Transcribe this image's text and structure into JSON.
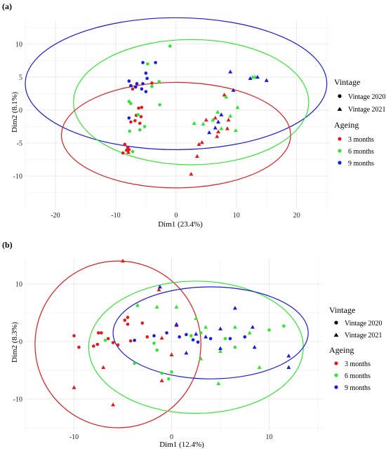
{
  "legend": {
    "vintage_title": "Vintage",
    "vintage_items": [
      {
        "label": "Vintage 2020",
        "shape": "circle"
      },
      {
        "label": "Vintage 2021",
        "shape": "triangle"
      }
    ],
    "ageing_title": "Ageing",
    "ageing_items": [
      {
        "label": "3 months",
        "color": "#e31a1c"
      },
      {
        "label": "6 months",
        "color": "#2ee82e"
      },
      {
        "label": "9 months",
        "color": "#1a1ae0"
      }
    ]
  },
  "chart_data": [
    {
      "panel": "(a)",
      "type": "scatter",
      "xlabel": "Dim1 (23.4%)",
      "ylabel": "Dim2 (8.1%)",
      "xlim": [
        -25,
        25.5
      ],
      "ylim": [
        -15,
        13.5
      ],
      "xticks": [
        -20,
        -10,
        0,
        10,
        20
      ],
      "yticks": [
        -10,
        -5,
        0,
        5,
        10
      ],
      "grid": true,
      "legend_position": "right",
      "ellipses": [
        {
          "group": "9 months",
          "cx": 0,
          "cy": 4,
          "rx": 25,
          "ry": 10,
          "color": "#1a1ae0"
        },
        {
          "group": "6 months",
          "cx": 2.5,
          "cy": 1.2,
          "rx": 19.5,
          "ry": 9.5,
          "color": "#2ee82e"
        },
        {
          "group": "3 months",
          "cx": 0,
          "cy": -3.8,
          "rx": 19,
          "ry": 8,
          "color": "#e31a1c"
        }
      ],
      "points": [
        {
          "x": -8.2,
          "y": -6.1,
          "group": "3 months",
          "shape": "circle"
        },
        {
          "x": -8.8,
          "y": -6.5,
          "group": "3 months",
          "shape": "circle"
        },
        {
          "x": -8.0,
          "y": -5.7,
          "group": "3 months",
          "shape": "circle"
        },
        {
          "x": -7.8,
          "y": -6.0,
          "group": "3 months",
          "shape": "circle"
        },
        {
          "x": -8.5,
          "y": -5.2,
          "group": "3 months",
          "shape": "circle"
        },
        {
          "x": -7.5,
          "y": -1.8,
          "group": "3 months",
          "shape": "circle"
        },
        {
          "x": -6.8,
          "y": -1.6,
          "group": "3 months",
          "shape": "circle"
        },
        {
          "x": -6.6,
          "y": -0.8,
          "group": "3 months",
          "shape": "circle"
        },
        {
          "x": -6.0,
          "y": -2.0,
          "group": "3 months",
          "shape": "circle"
        },
        {
          "x": -5.8,
          "y": -1.0,
          "group": "3 months",
          "shape": "circle"
        },
        {
          "x": -6.2,
          "y": 0.3,
          "group": "3 months",
          "shape": "circle"
        },
        {
          "x": -5.7,
          "y": 0.4,
          "group": "3 months",
          "shape": "circle"
        },
        {
          "x": -7.2,
          "y": 3.2,
          "group": "3 months",
          "shape": "circle"
        },
        {
          "x": -4.0,
          "y": 4.1,
          "group": "3 months",
          "shape": "circle"
        },
        {
          "x": -7.9,
          "y": -6.4,
          "group": "3 months",
          "shape": "triangle"
        },
        {
          "x": 2.5,
          "y": -9.7,
          "group": "3 months",
          "shape": "triangle"
        },
        {
          "x": 3.5,
          "y": -7.0,
          "group": "3 months",
          "shape": "triangle"
        },
        {
          "x": 3.8,
          "y": -5.2,
          "group": "3 months",
          "shape": "triangle"
        },
        {
          "x": 4.3,
          "y": -4.9,
          "group": "3 months",
          "shape": "triangle"
        },
        {
          "x": 5.0,
          "y": -1.5,
          "group": "3 months",
          "shape": "triangle"
        },
        {
          "x": 7.0,
          "y": -3.3,
          "group": "3 months",
          "shape": "triangle"
        },
        {
          "x": 8.5,
          "y": -2.8,
          "group": "3 months",
          "shape": "triangle"
        },
        {
          "x": 6.5,
          "y": -1.2,
          "group": "3 months",
          "shape": "triangle"
        },
        {
          "x": 8.7,
          "y": -1.5,
          "group": "3 months",
          "shape": "triangle"
        },
        {
          "x": 6.8,
          "y": -4.0,
          "group": "3 months",
          "shape": "triangle"
        },
        {
          "x": 8.0,
          "y": 2.3,
          "group": "3 months",
          "shape": "triangle"
        },
        {
          "x": -1.0,
          "y": 9.7,
          "group": "6 months",
          "shape": "circle"
        },
        {
          "x": -4.7,
          "y": 7.0,
          "group": "6 months",
          "shape": "circle"
        },
        {
          "x": -7.8,
          "y": 1.3,
          "group": "6 months",
          "shape": "circle"
        },
        {
          "x": -7.5,
          "y": 1.0,
          "group": "6 months",
          "shape": "circle"
        },
        {
          "x": -6.3,
          "y": -0.7,
          "group": "6 months",
          "shape": "circle"
        },
        {
          "x": -5.2,
          "y": -2.5,
          "group": "6 months",
          "shape": "circle"
        },
        {
          "x": -6.0,
          "y": -3.0,
          "group": "6 months",
          "shape": "circle"
        },
        {
          "x": -7.7,
          "y": -3.2,
          "group": "6 months",
          "shape": "circle"
        },
        {
          "x": -7.2,
          "y": -6.3,
          "group": "6 months",
          "shape": "circle"
        },
        {
          "x": -2.8,
          "y": 4.3,
          "group": "6 months",
          "shape": "circle"
        },
        {
          "x": -4.0,
          "y": 3.6,
          "group": "6 months",
          "shape": "circle"
        },
        {
          "x": -2.7,
          "y": 0.8,
          "group": "6 months",
          "shape": "circle"
        },
        {
          "x": 3.0,
          "y": -2.0,
          "group": "6 months",
          "shape": "triangle"
        },
        {
          "x": 4.5,
          "y": -2.1,
          "group": "6 months",
          "shape": "triangle"
        },
        {
          "x": 6.1,
          "y": -1.5,
          "group": "6 months",
          "shape": "triangle"
        },
        {
          "x": 6.9,
          "y": -0.3,
          "group": "6 months",
          "shape": "triangle"
        },
        {
          "x": 7.5,
          "y": -2.8,
          "group": "6 months",
          "shape": "triangle"
        },
        {
          "x": 8.3,
          "y": 2.0,
          "group": "6 months",
          "shape": "triangle"
        },
        {
          "x": 9.0,
          "y": -0.9,
          "group": "6 months",
          "shape": "triangle"
        },
        {
          "x": 9.9,
          "y": -3.1,
          "group": "6 months",
          "shape": "triangle"
        },
        {
          "x": 10.2,
          "y": 0.4,
          "group": "6 months",
          "shape": "triangle"
        },
        {
          "x": 12.7,
          "y": 5.0,
          "group": "6 months",
          "shape": "triangle"
        },
        {
          "x": 13.1,
          "y": 5.0,
          "group": "6 months",
          "shape": "triangle"
        },
        {
          "x": -3.4,
          "y": 7.2,
          "group": "9 months",
          "shape": "circle"
        },
        {
          "x": -5.5,
          "y": 7.2,
          "group": "9 months",
          "shape": "circle"
        },
        {
          "x": -5.0,
          "y": 5.6,
          "group": "9 months",
          "shape": "circle"
        },
        {
          "x": -4.8,
          "y": 4.8,
          "group": "9 months",
          "shape": "circle"
        },
        {
          "x": -5.5,
          "y": 4.0,
          "group": "9 months",
          "shape": "circle"
        },
        {
          "x": -6.5,
          "y": 4.0,
          "group": "9 months",
          "shape": "circle"
        },
        {
          "x": -7.8,
          "y": 4.4,
          "group": "9 months",
          "shape": "circle"
        },
        {
          "x": -7.5,
          "y": 3.7,
          "group": "9 months",
          "shape": "circle"
        },
        {
          "x": -6.7,
          "y": 3.5,
          "group": "9 months",
          "shape": "circle"
        },
        {
          "x": -5.7,
          "y": 3.2,
          "group": "9 months",
          "shape": "circle"
        },
        {
          "x": -5.0,
          "y": 2.8,
          "group": "9 months",
          "shape": "circle"
        },
        {
          "x": -7.8,
          "y": -1.2,
          "group": "9 months",
          "shape": "circle"
        },
        {
          "x": 5.5,
          "y": -3.4,
          "group": "9 months",
          "shape": "triangle"
        },
        {
          "x": 6.5,
          "y": -2.7,
          "group": "9 months",
          "shape": "triangle"
        },
        {
          "x": 7.0,
          "y": -1.8,
          "group": "9 months",
          "shape": "triangle"
        },
        {
          "x": 7.5,
          "y": -0.7,
          "group": "9 months",
          "shape": "triangle"
        },
        {
          "x": 9.0,
          "y": 5.8,
          "group": "9 months",
          "shape": "triangle"
        },
        {
          "x": 9.5,
          "y": 3.0,
          "group": "9 months",
          "shape": "triangle"
        },
        {
          "x": 12.3,
          "y": 4.8,
          "group": "9 months",
          "shape": "triangle"
        },
        {
          "x": 13.5,
          "y": 5.0,
          "group": "9 months",
          "shape": "triangle"
        },
        {
          "x": 15.0,
          "y": 4.5,
          "group": "9 months",
          "shape": "triangle"
        }
      ]
    },
    {
      "panel": "(b)",
      "type": "scatter",
      "xlabel": "Dim1 (12.4%)",
      "ylabel": "Dim2 (8.3%)",
      "xlim": [
        -15,
        15.5
      ],
      "ylim": [
        -15.5,
        14.5
      ],
      "xticks": [
        -10,
        0,
        10
      ],
      "yticks": [
        -10,
        0,
        10
      ],
      "grid": true,
      "legend_position": "right",
      "ellipses": [
        {
          "group": "3 months",
          "cx": -5.5,
          "cy": -0.5,
          "rx": 8.5,
          "ry": 14.5,
          "color": "#e31a1c"
        },
        {
          "group": "6 months",
          "cx": 2.5,
          "cy": -1.0,
          "rx": 11,
          "ry": 11.5,
          "color": "#2ee82e"
        },
        {
          "group": "9 months",
          "cx": 4.0,
          "cy": 1.5,
          "rx": 10,
          "ry": 8,
          "color": "#1a1ae0"
        }
      ],
      "points": [
        {
          "x": -10.0,
          "y": 1.0,
          "group": "3 months",
          "shape": "circle"
        },
        {
          "x": -9.5,
          "y": -1.0,
          "group": "3 months",
          "shape": "circle"
        },
        {
          "x": -8.0,
          "y": -0.8,
          "group": "3 months",
          "shape": "circle"
        },
        {
          "x": -7.6,
          "y": -0.5,
          "group": "3 months",
          "shape": "circle"
        },
        {
          "x": -7.5,
          "y": 1.5,
          "group": "3 months",
          "shape": "circle"
        },
        {
          "x": -7.2,
          "y": 1.5,
          "group": "3 months",
          "shape": "circle"
        },
        {
          "x": -6.5,
          "y": 0.5,
          "group": "3 months",
          "shape": "circle"
        },
        {
          "x": -6.0,
          "y": -0.2,
          "group": "3 months",
          "shape": "circle"
        },
        {
          "x": -5.5,
          "y": -0.6,
          "group": "3 months",
          "shape": "circle"
        },
        {
          "x": -4.8,
          "y": 3.7,
          "group": "3 months",
          "shape": "circle"
        },
        {
          "x": -4.5,
          "y": 4.2,
          "group": "3 months",
          "shape": "circle"
        },
        {
          "x": -4.5,
          "y": 3.0,
          "group": "3 months",
          "shape": "circle"
        },
        {
          "x": -4.2,
          "y": 0.1,
          "group": "3 months",
          "shape": "circle"
        },
        {
          "x": -3.0,
          "y": 3.2,
          "group": "3 months",
          "shape": "circle"
        },
        {
          "x": -2.5,
          "y": 0.8,
          "group": "3 months",
          "shape": "circle"
        },
        {
          "x": -10.0,
          "y": -8.0,
          "group": "3 months",
          "shape": "triangle"
        },
        {
          "x": -7.0,
          "y": -4.5,
          "group": "3 months",
          "shape": "triangle"
        },
        {
          "x": -5.0,
          "y": 14.0,
          "group": "3 months",
          "shape": "triangle"
        },
        {
          "x": -6.0,
          "y": -11.0,
          "group": "3 months",
          "shape": "triangle"
        },
        {
          "x": -1.0,
          "y": -6.8,
          "group": "3 months",
          "shape": "triangle"
        },
        {
          "x": 0.0,
          "y": -2.3,
          "group": "3 months",
          "shape": "triangle"
        },
        {
          "x": -1.0,
          "y": 0.6,
          "group": "3 months",
          "shape": "triangle"
        },
        {
          "x": 0.5,
          "y": 2.8,
          "group": "3 months",
          "shape": "triangle"
        },
        {
          "x": -1.3,
          "y": 9.0,
          "group": "3 months",
          "shape": "triangle"
        },
        {
          "x": -6.8,
          "y": 0.2,
          "group": "6 months",
          "shape": "circle"
        },
        {
          "x": -3.8,
          "y": -3.8,
          "group": "6 months",
          "shape": "circle"
        },
        {
          "x": -1.0,
          "y": -5.5,
          "group": "6 months",
          "shape": "circle"
        },
        {
          "x": -0.3,
          "y": -6.5,
          "group": "6 months",
          "shape": "circle"
        },
        {
          "x": 0.0,
          "y": -5.3,
          "group": "6 months",
          "shape": "circle"
        },
        {
          "x": -1.8,
          "y": -0.3,
          "group": "6 months",
          "shape": "circle"
        },
        {
          "x": -1.5,
          "y": -1.5,
          "group": "6 months",
          "shape": "circle"
        },
        {
          "x": 2.0,
          "y": 1.0,
          "group": "6 months",
          "shape": "circle"
        },
        {
          "x": 3.0,
          "y": 1.5,
          "group": "6 months",
          "shape": "circle"
        },
        {
          "x": 5.5,
          "y": 0.5,
          "group": "6 months",
          "shape": "circle"
        },
        {
          "x": 6.5,
          "y": -1.0,
          "group": "6 months",
          "shape": "circle"
        },
        {
          "x": 10.0,
          "y": 2.0,
          "group": "6 months",
          "shape": "circle"
        },
        {
          "x": 11.5,
          "y": 2.7,
          "group": "6 months",
          "shape": "circle"
        },
        {
          "x": -3.5,
          "y": 6.3,
          "group": "6 months",
          "shape": "triangle"
        },
        {
          "x": -1.5,
          "y": 6.0,
          "group": "6 months",
          "shape": "triangle"
        },
        {
          "x": 0.5,
          "y": 6.0,
          "group": "6 months",
          "shape": "triangle"
        },
        {
          "x": 2.5,
          "y": 4.0,
          "group": "6 months",
          "shape": "triangle"
        },
        {
          "x": 3.5,
          "y": 2.5,
          "group": "6 months",
          "shape": "triangle"
        },
        {
          "x": 3.0,
          "y": -3.0,
          "group": "6 months",
          "shape": "triangle"
        },
        {
          "x": 5.0,
          "y": -1.7,
          "group": "6 months",
          "shape": "triangle"
        },
        {
          "x": 6.5,
          "y": 2.5,
          "group": "6 months",
          "shape": "triangle"
        },
        {
          "x": 8.0,
          "y": 1.5,
          "group": "6 months",
          "shape": "triangle"
        },
        {
          "x": 9.0,
          "y": -4.5,
          "group": "6 months",
          "shape": "triangle"
        },
        {
          "x": 4.8,
          "y": -7.3,
          "group": "6 months",
          "shape": "triangle"
        },
        {
          "x": -1.8,
          "y": 1.0,
          "group": "9 months",
          "shape": "circle"
        },
        {
          "x": -0.5,
          "y": 1.5,
          "group": "9 months",
          "shape": "circle"
        },
        {
          "x": 0.8,
          "y": 0.8,
          "group": "9 months",
          "shape": "circle"
        },
        {
          "x": 1.5,
          "y": 1.2,
          "group": "9 months",
          "shape": "circle"
        },
        {
          "x": 2.2,
          "y": 0.3,
          "group": "9 months",
          "shape": "circle"
        },
        {
          "x": 2.7,
          "y": -0.1,
          "group": "9 months",
          "shape": "circle"
        },
        {
          "x": 4.0,
          "y": 0.5,
          "group": "9 months",
          "shape": "circle"
        },
        {
          "x": 6.0,
          "y": 0.5,
          "group": "9 months",
          "shape": "circle"
        },
        {
          "x": 7.5,
          "y": 0.8,
          "group": "9 months",
          "shape": "circle"
        },
        {
          "x": -3.8,
          "y": 0.2,
          "group": "9 months",
          "shape": "circle"
        },
        {
          "x": -1.2,
          "y": 9.5,
          "group": "9 months",
          "shape": "triangle"
        },
        {
          "x": 0.5,
          "y": 3.0,
          "group": "9 months",
          "shape": "triangle"
        },
        {
          "x": 1.5,
          "y": -2.0,
          "group": "9 months",
          "shape": "triangle"
        },
        {
          "x": 2.5,
          "y": 1.3,
          "group": "9 months",
          "shape": "triangle"
        },
        {
          "x": 3.5,
          "y": 0.8,
          "group": "9 months",
          "shape": "triangle"
        },
        {
          "x": 5.0,
          "y": 2.2,
          "group": "9 months",
          "shape": "triangle"
        },
        {
          "x": 5.0,
          "y": -1.2,
          "group": "9 months",
          "shape": "triangle"
        },
        {
          "x": 6.5,
          "y": 5.8,
          "group": "9 months",
          "shape": "triangle"
        },
        {
          "x": 8.5,
          "y": -1.0,
          "group": "9 months",
          "shape": "triangle"
        },
        {
          "x": 8.3,
          "y": 2.5,
          "group": "9 months",
          "shape": "triangle"
        },
        {
          "x": 12.0,
          "y": -4.5,
          "group": "9 months",
          "shape": "triangle"
        },
        {
          "x": 12.0,
          "y": -2.5,
          "group": "9 months",
          "shape": "triangle"
        }
      ]
    }
  ]
}
